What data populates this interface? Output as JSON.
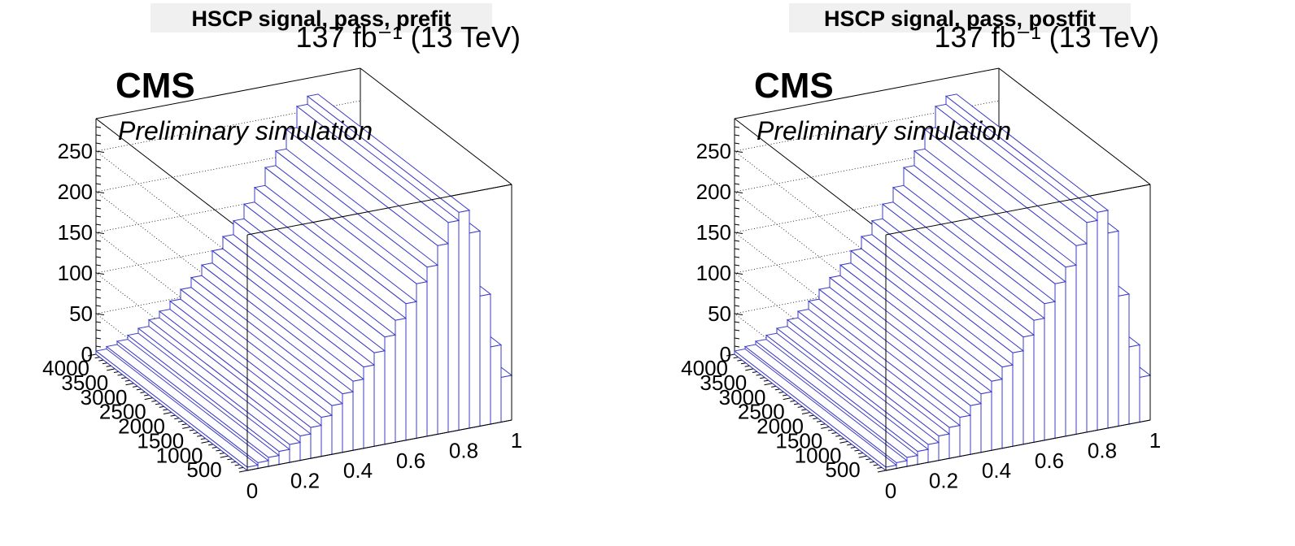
{
  "colors": {
    "background": "#ffffff",
    "axis": "#000000",
    "bar_outline": "#3c3cc8",
    "bar_fill": "#ffffff",
    "title_box": "#f0f0f0",
    "grid": "#000000"
  },
  "panels": [
    {
      "title": "HSCP signal, pass, prefit",
      "lumi_label": "137 fb⁻¹ (13 TeV)",
      "experiment_label": "CMS",
      "extra_label": "Preliminary simulation"
    },
    {
      "title": "HSCP signal, pass, postfit",
      "lumi_label": "137 fb⁻¹ (13 TeV)",
      "experiment_label": "CMS",
      "extra_label": "Preliminary simulation"
    }
  ],
  "chart_data": [
    {
      "type": "bar",
      "style": "3d lego histogram",
      "title": "HSCP signal, pass, prefit",
      "x_ticks": [
        "0",
        "0.2",
        "0.4",
        "0.6",
        "0.8",
        "1"
      ],
      "y_ticks": [
        "500",
        "1000",
        "1500",
        "2000",
        "2500",
        "3000",
        "3500",
        "4000"
      ],
      "z_ticks": [
        "0",
        "50",
        "100",
        "150",
        "200",
        "250"
      ],
      "xlim": [
        0,
        1
      ],
      "ylim": [
        0,
        4000
      ],
      "zlim": [
        0,
        290
      ],
      "grid": true,
      "x_bin_edges": [
        0,
        0.04,
        0.08,
        0.12,
        0.16,
        0.2,
        0.24,
        0.28,
        0.32,
        0.36,
        0.4,
        0.44,
        0.48,
        0.52,
        0.56,
        0.6,
        0.64,
        0.68,
        0.72,
        0.76,
        0.8,
        0.84,
        0.88,
        0.92,
        0.96,
        1.0
      ],
      "values": [
        4,
        7,
        11,
        16,
        22,
        30,
        38,
        48,
        60,
        72,
        85,
        100,
        115,
        132,
        150,
        168,
        190,
        208,
        232,
        258,
        268,
        240,
        160,
        95,
        55
      ]
    },
    {
      "type": "bar",
      "style": "3d lego histogram",
      "title": "HSCP signal, pass, postfit",
      "x_ticks": [
        "0",
        "0.2",
        "0.4",
        "0.6",
        "0.8",
        "1"
      ],
      "y_ticks": [
        "500",
        "1000",
        "1500",
        "2000",
        "2500",
        "3000",
        "3500",
        "4000"
      ],
      "z_ticks": [
        "0",
        "50",
        "100",
        "150",
        "200",
        "250"
      ],
      "xlim": [
        0,
        1
      ],
      "ylim": [
        0,
        4000
      ],
      "zlim": [
        0,
        290
      ],
      "grid": true,
      "x_bin_edges": [
        0,
        0.04,
        0.08,
        0.12,
        0.16,
        0.2,
        0.24,
        0.28,
        0.32,
        0.36,
        0.4,
        0.44,
        0.48,
        0.52,
        0.56,
        0.6,
        0.64,
        0.68,
        0.72,
        0.76,
        0.8,
        0.84,
        0.88,
        0.92,
        0.96,
        1.0
      ],
      "values": [
        4,
        7,
        11,
        16,
        22,
        30,
        38,
        48,
        60,
        72,
        85,
        100,
        115,
        132,
        150,
        168,
        190,
        208,
        232,
        258,
        268,
        240,
        160,
        95,
        55
      ]
    }
  ]
}
